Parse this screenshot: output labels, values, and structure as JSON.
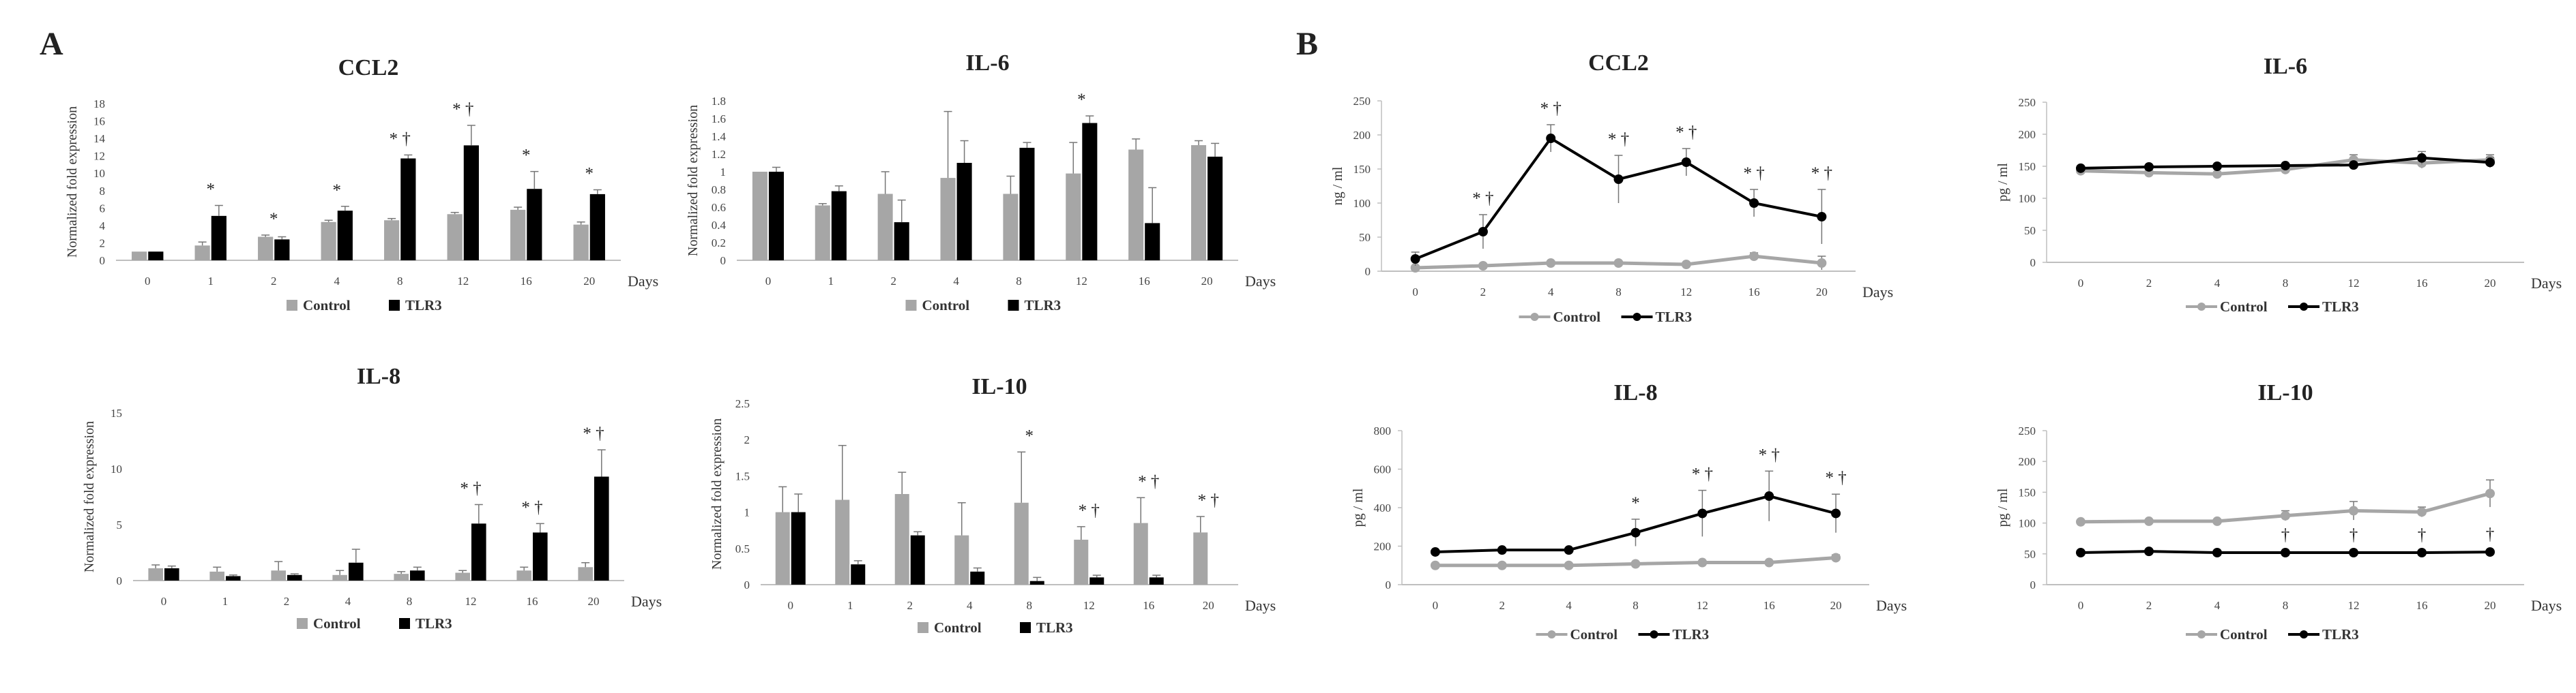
{
  "panels": {
    "a": "A",
    "b": "B"
  },
  "colors": {
    "control_bar": "#a6a6a6",
    "tlr3_bar": "#000000",
    "control_line": "#a6a6a6",
    "tlr3_line": "#000000",
    "axis": "#bfbfbf"
  },
  "chart_data": [
    {
      "type": "bar",
      "title": "CCL2",
      "ylabel": "Normalized fold expression",
      "xlabel": "Days",
      "categories": [
        "0",
        "1",
        "2",
        "4",
        "8",
        "12",
        "16",
        "20"
      ],
      "yticks": [
        "0",
        "2",
        "4",
        "6",
        "8",
        "10",
        "12",
        "14",
        "16",
        "18"
      ],
      "ylim": [
        0,
        18
      ],
      "series": [
        {
          "name": "Control",
          "values": [
            1,
            1.7,
            2.7,
            4.4,
            4.6,
            5.3,
            5.8,
            4.1
          ],
          "errors": [
            0,
            0.4,
            0.2,
            0.2,
            0.2,
            0.2,
            0.3,
            0.3
          ]
        },
        {
          "name": "TLR3",
          "values": [
            1,
            5.1,
            2.4,
            5.7,
            11.7,
            13.2,
            8.2,
            7.6
          ],
          "errors": [
            0,
            1.2,
            0.3,
            0.5,
            0.4,
            2.3,
            2,
            0.5
          ]
        }
      ],
      "annotations": [
        "",
        "*",
        "*",
        "*",
        "* †",
        "* †",
        "*",
        "*"
      ]
    },
    {
      "type": "bar",
      "title": "IL-6",
      "ylabel": "Normalized fold expression",
      "xlabel": "Days",
      "categories": [
        "0",
        "1",
        "2",
        "4",
        "8",
        "12",
        "16",
        "20"
      ],
      "yticks": [
        "0",
        "0.2",
        "0.4",
        "0.6",
        "0.8",
        "1",
        "1.2",
        "1.4",
        "1.6",
        "1.8"
      ],
      "ylim": [
        0,
        1.8
      ],
      "series": [
        {
          "name": "Control",
          "values": [
            1,
            0.62,
            0.75,
            0.93,
            0.75,
            0.98,
            1.25,
            1.3
          ],
          "errors": [
            0,
            0.02,
            0.25,
            0.75,
            0.2,
            0.35,
            0.12,
            0.05
          ]
        },
        {
          "name": "TLR3",
          "values": [
            1,
            0.78,
            0.43,
            1.1,
            1.27,
            1.55,
            0.42,
            1.17
          ],
          "errors": [
            0.05,
            0.06,
            0.25,
            0.25,
            0.06,
            0.08,
            0.4,
            0.15
          ]
        }
      ],
      "annotations": [
        "",
        "",
        "",
        "",
        "",
        "*",
        "",
        ""
      ]
    },
    {
      "type": "bar",
      "title": "IL-8",
      "ylabel": "Normalized fold expression",
      "xlabel": "Days",
      "categories": [
        "0",
        "1",
        "2",
        "4",
        "8",
        "12",
        "16",
        "20"
      ],
      "yticks": [
        "0",
        "5",
        "10",
        "15"
      ],
      "ylim": [
        0,
        15
      ],
      "series": [
        {
          "name": "Control",
          "values": [
            1.1,
            0.8,
            0.9,
            0.5,
            0.6,
            0.7,
            0.9,
            1.2
          ],
          "errors": [
            0.3,
            0.4,
            0.8,
            0.4,
            0.2,
            0.2,
            0.3,
            0.4
          ]
        },
        {
          "name": "TLR3",
          "values": [
            1.1,
            0.4,
            0.5,
            1.6,
            0.9,
            5.1,
            4.3,
            9.3
          ],
          "errors": [
            0.2,
            0.1,
            0.1,
            1.2,
            0.3,
            1.7,
            0.8,
            2.4
          ]
        }
      ],
      "annotations": [
        "",
        "",
        "",
        "",
        "",
        "* †",
        "* †",
        "* †"
      ]
    },
    {
      "type": "bar",
      "title": "IL-10",
      "ylabel": "Normalized fold expression",
      "xlabel": "Days",
      "categories": [
        "0",
        "1",
        "2",
        "4",
        "8",
        "12",
        "16",
        "20"
      ],
      "yticks": [
        "0",
        "0.5",
        "1",
        "1.5",
        "2",
        "2.5"
      ],
      "ylim": [
        0,
        2.5
      ],
      "series": [
        {
          "name": "Control",
          "values": [
            1,
            1.17,
            1.25,
            0.68,
            1.13,
            0.62,
            0.85,
            0.72
          ],
          "errors": [
            0.35,
            0.75,
            0.3,
            0.45,
            0.7,
            0.18,
            0.35,
            0.22
          ]
        },
        {
          "name": "TLR3",
          "values": [
            1,
            0.28,
            0.68,
            0.18,
            0.05,
            0.1,
            0.1,
            0
          ],
          "errors": [
            0.25,
            0.05,
            0.05,
            0.05,
            0.05,
            0.03,
            0.03,
            0
          ]
        }
      ],
      "annotations": [
        "",
        "",
        "",
        "",
        "*",
        "* †",
        "* †",
        "* †"
      ]
    },
    {
      "type": "line",
      "title": "CCL2",
      "ylabel": "ng / ml",
      "xlabel": "Days",
      "categories": [
        "0",
        "2",
        "4",
        "8",
        "12",
        "16",
        "20"
      ],
      "yticks": [
        "0",
        "50",
        "100",
        "150",
        "200",
        "250"
      ],
      "ylim": [
        0,
        250
      ],
      "series": [
        {
          "name": "Control",
          "values": [
            5,
            8,
            12,
            12,
            10,
            22,
            12
          ],
          "errors": [
            3,
            3,
            3,
            3,
            3,
            5,
            10
          ]
        },
        {
          "name": "TLR3",
          "values": [
            18,
            58,
            195,
            135,
            160,
            100,
            80
          ],
          "errors": [
            10,
            25,
            20,
            35,
            20,
            20,
            40
          ]
        }
      ],
      "annotations": [
        "",
        "* †",
        "* †",
        "* †",
        "* †",
        "* †",
        "* †"
      ]
    },
    {
      "type": "line",
      "title": "IL-6",
      "ylabel": "pg / ml",
      "xlabel": "Days",
      "categories": [
        "0",
        "2",
        "4",
        "8",
        "12",
        "16",
        "20"
      ],
      "yticks": [
        "0",
        "50",
        "100",
        "150",
        "200",
        "250"
      ],
      "ylim": [
        0,
        250
      ],
      "series": [
        {
          "name": "Control",
          "values": [
            143,
            140,
            138,
            145,
            160,
            155,
            160
          ],
          "errors": [
            3,
            3,
            3,
            3,
            8,
            8,
            8
          ]
        },
        {
          "name": "TLR3",
          "values": [
            147,
            149,
            150,
            151,
            152,
            163,
            156
          ],
          "errors": [
            3,
            3,
            3,
            3,
            3,
            10,
            8
          ]
        }
      ],
      "annotations": [
        "",
        "",
        "",
        "",
        "",
        "",
        ""
      ]
    },
    {
      "type": "line",
      "title": "IL-8",
      "ylabel": "pg / ml",
      "xlabel": "Days",
      "categories": [
        "0",
        "2",
        "4",
        "8",
        "12",
        "16",
        "20"
      ],
      "yticks": [
        "0",
        "200",
        "400",
        "600",
        "800"
      ],
      "ylim": [
        0,
        800
      ],
      "series": [
        {
          "name": "Control",
          "values": [
            100,
            100,
            100,
            108,
            115,
            115,
            140
          ],
          "errors": [
            5,
            5,
            5,
            8,
            8,
            8,
            15
          ]
        },
        {
          "name": "TLR3",
          "values": [
            170,
            180,
            180,
            270,
            370,
            460,
            370
          ],
          "errors": [
            10,
            10,
            10,
            70,
            120,
            130,
            100
          ]
        }
      ],
      "annotations": [
        "",
        "",
        "",
        "*",
        "* †",
        "* †",
        "* †"
      ]
    },
    {
      "type": "line",
      "title": "IL-10",
      "ylabel": "pg / ml",
      "xlabel": "Days",
      "categories": [
        "0",
        "2",
        "4",
        "8",
        "12",
        "16",
        "20"
      ],
      "yticks": [
        "0",
        "50",
        "100",
        "150",
        "200",
        "250"
      ],
      "ylim": [
        0,
        250
      ],
      "series": [
        {
          "name": "Control",
          "values": [
            102,
            103,
            103,
            112,
            120,
            118,
            148
          ],
          "errors": [
            3,
            3,
            3,
            8,
            15,
            8,
            22
          ]
        },
        {
          "name": "TLR3",
          "values": [
            52,
            54,
            52,
            52,
            52,
            52,
            53
          ],
          "errors": [
            2,
            2,
            2,
            2,
            2,
            2,
            2
          ]
        }
      ],
      "annotations": [
        "",
        "",
        "",
        "†",
        "†",
        "†",
        "†"
      ]
    }
  ]
}
